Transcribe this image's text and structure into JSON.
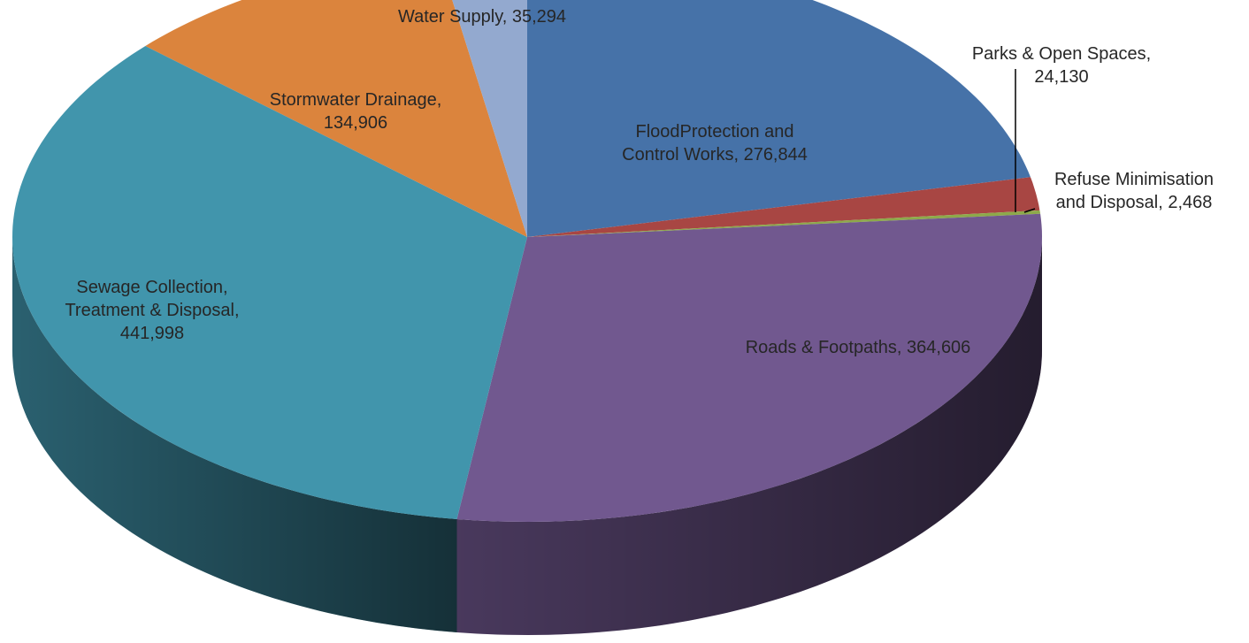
{
  "chart_data": {
    "type": "pie",
    "title": "",
    "series": [
      {
        "values": [
          {
            "category": "FloodProtection and Control Works",
            "value": 276844,
            "color": "#4672A8",
            "label_lines": [
              "FloodProtection and",
              "Control Works, 276,844"
            ]
          },
          {
            "category": "Parks & Open Spaces",
            "value": 24130,
            "color": "#A84643",
            "label_lines": [
              "Parks & Open Spaces,",
              "24,130"
            ]
          },
          {
            "category": "Refuse Minimisation and Disposal",
            "value": 2468,
            "color": "#8DA94A",
            "label_lines": [
              "Refuse Minimisation",
              "and Disposal, 2,468"
            ]
          },
          {
            "category": "Roads & Footpaths",
            "value": 364606,
            "color": "#71588F",
            "label_lines": [
              "Roads & Footpaths, 364,606"
            ]
          },
          {
            "category": "Sewage Collection, Treatment & Disposal",
            "value": 441998,
            "color": "#4195AC",
            "label_lines": [
              "Sewage Collection,",
              "Treatment & Disposal,",
              "441,998"
            ]
          },
          {
            "category": "Stormwater Drainage",
            "value": 134906,
            "color": "#DB843D",
            "label_lines": [
              "Stormwater Drainage,",
              "134,906"
            ]
          },
          {
            "category": "Water Supply",
            "value": 35294,
            "color": "#93A9CF",
            "label_lines": [
              "Water Supply, 35,294"
            ]
          }
        ]
      }
    ],
    "data_labels": "category, value",
    "legend": "none",
    "style": "3d"
  }
}
